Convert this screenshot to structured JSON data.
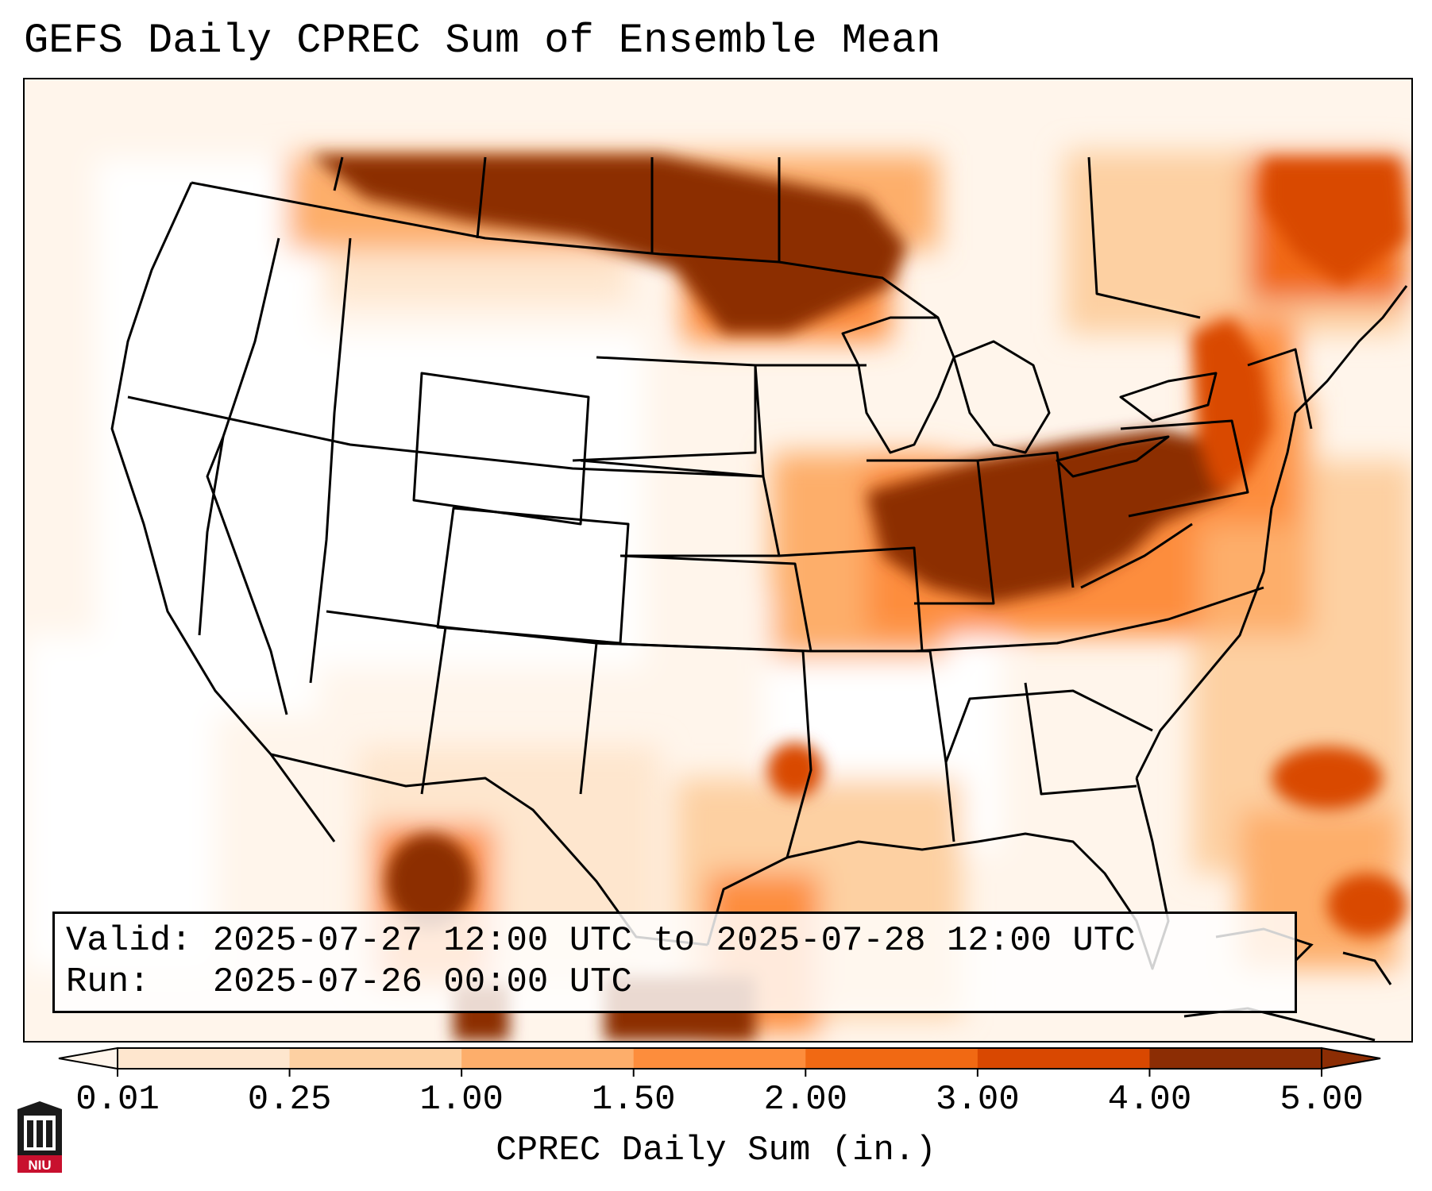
{
  "title": "GEFS Daily CPREC Sum of Ensemble Mean",
  "info": {
    "valid_label": "Valid:",
    "valid_value": "2025-07-27 12:00 UTC to 2025-07-28 12:00 UTC",
    "run_label": "Run:",
    "run_value": "2025-07-26 00:00 UTC"
  },
  "colorbar": {
    "label": "CPREC Daily Sum (in.)",
    "ticks": [
      "0.01",
      "0.25",
      "1.00",
      "1.50",
      "2.00",
      "3.00",
      "4.00",
      "5.00"
    ],
    "colors": [
      "#fff5eb",
      "#fee6ce",
      "#fdd0a2",
      "#fdae6b",
      "#fd8d3c",
      "#f16913",
      "#d94801",
      "#8c2d04"
    ],
    "extend": "both"
  },
  "logo": {
    "text": "NIU",
    "color": "#c8102e"
  },
  "map": {
    "projection": "Lambert conformal, contiguous United States",
    "colors": {
      "none": "#ffffff",
      "trace": "#fff5eb",
      "light": "#fee6ce",
      "moderate": "#fdd0a2",
      "heavy": "#fdae6b",
      "very_heavy": "#f16913",
      "extreme": "#8c2d04",
      "borders": "#000000"
    }
  }
}
